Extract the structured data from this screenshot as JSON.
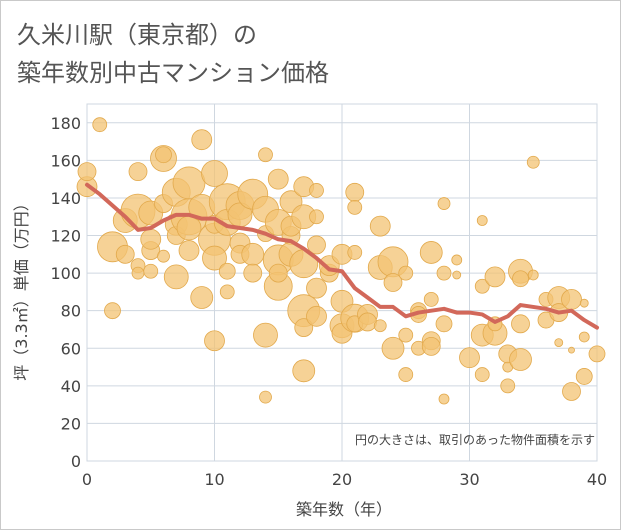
{
  "page": {
    "title_line1": "久米川駅（東京都）の",
    "title_line2": "築年数別中古マンション価格"
  },
  "colors": {
    "bubble_fill": "#f3c373",
    "bubble_stroke": "#e2a94c",
    "line": "#d2685a",
    "grid": "#cfd7e0",
    "axis_text": "#444444"
  },
  "chart_data": {
    "type": "scatter",
    "xlabel": "築年数（年）",
    "ylabel": "坪（3.3㎡）単価（万円）",
    "xlim": [
      0,
      40
    ],
    "ylim": [
      0,
      190
    ],
    "x_ticks": [
      "0",
      "10",
      "20",
      "30",
      "40"
    ],
    "y_ticks": [
      "0",
      "20",
      "40",
      "60",
      "80",
      "100",
      "120",
      "140",
      "160",
      "180"
    ],
    "x_tick_values": [
      0,
      10,
      20,
      30,
      40
    ],
    "y_tick_values": [
      0,
      20,
      40,
      60,
      80,
      100,
      120,
      140,
      160,
      180
    ],
    "grid": true,
    "note": "円の大きさは、取引のあった物件面積を示す",
    "trend_line": {
      "x": [
        0,
        1,
        2,
        3,
        4,
        5,
        6,
        7,
        8,
        9,
        10,
        11,
        12,
        13,
        14,
        15,
        16,
        17,
        18,
        19,
        20,
        21,
        22,
        23,
        24,
        25,
        26,
        27,
        28,
        29,
        30,
        31,
        32,
        33,
        34,
        35,
        36,
        37,
        38,
        39,
        40
      ],
      "y": [
        147,
        142,
        136,
        130,
        123,
        124,
        128,
        131,
        131,
        129,
        129,
        125,
        124,
        123,
        121,
        118,
        117,
        113,
        108,
        102,
        101,
        92,
        87,
        82,
        82,
        77,
        79,
        80,
        81,
        79,
        79,
        78,
        74,
        77,
        83,
        82,
        81,
        79,
        80,
        75,
        71
      ]
    },
    "bubbles": [
      [
        0,
        146,
        10
      ],
      [
        0,
        154,
        9
      ],
      [
        1,
        179,
        7
      ],
      [
        2,
        114,
        15
      ],
      [
        2,
        80,
        8
      ],
      [
        3,
        110,
        9
      ],
      [
        3,
        128,
        12
      ],
      [
        4,
        133,
        17
      ],
      [
        4,
        154,
        9
      ],
      [
        4,
        104,
        7
      ],
      [
        4,
        100,
        6
      ],
      [
        5,
        132,
        12
      ],
      [
        5,
        112,
        9
      ],
      [
        5,
        101,
        7
      ],
      [
        5,
        118,
        10
      ],
      [
        6,
        161,
        13
      ],
      [
        6,
        163,
        8
      ],
      [
        6,
        137,
        9
      ],
      [
        6,
        109,
        6
      ],
      [
        7,
        143,
        14
      ],
      [
        7,
        126,
        11
      ],
      [
        7,
        98,
        12
      ],
      [
        7,
        120,
        9
      ],
      [
        8,
        148,
        16
      ],
      [
        8,
        130,
        18
      ],
      [
        8,
        124,
        12
      ],
      [
        8,
        112,
        10
      ],
      [
        9,
        171,
        10
      ],
      [
        9,
        87,
        11
      ],
      [
        9,
        135,
        13
      ],
      [
        10,
        153,
        13
      ],
      [
        10,
        118,
        16
      ],
      [
        10,
        108,
        12
      ],
      [
        10,
        64,
        10
      ],
      [
        10,
        126,
        9
      ],
      [
        11,
        138,
        18
      ],
      [
        11,
        127,
        13
      ],
      [
        11,
        101,
        8
      ],
      [
        11,
        90,
        7
      ],
      [
        12,
        136,
        14
      ],
      [
        12,
        131,
        12
      ],
      [
        12,
        116,
        10
      ],
      [
        12,
        110,
        9
      ],
      [
        13,
        142,
        15
      ],
      [
        13,
        110,
        11
      ],
      [
        13,
        100,
        9
      ],
      [
        14,
        134,
        13
      ],
      [
        14,
        163,
        7
      ],
      [
        14,
        67,
        12
      ],
      [
        14,
        34,
        6
      ],
      [
        14,
        121,
        8
      ],
      [
        15,
        150,
        10
      ],
      [
        15,
        127,
        13
      ],
      [
        15,
        107,
        15
      ],
      [
        15,
        93,
        14
      ],
      [
        15,
        100,
        9
      ],
      [
        16,
        138,
        11
      ],
      [
        16,
        120,
        9
      ],
      [
        16,
        110,
        12
      ],
      [
        16,
        125,
        10
      ],
      [
        17,
        146,
        10
      ],
      [
        17,
        105,
        14
      ],
      [
        17,
        80,
        16
      ],
      [
        17,
        71,
        9
      ],
      [
        17,
        48,
        11
      ],
      [
        17,
        130,
        12
      ],
      [
        18,
        144,
        7
      ],
      [
        18,
        130,
        7
      ],
      [
        18,
        115,
        9
      ],
      [
        18,
        92,
        10
      ],
      [
        18,
        77,
        10
      ],
      [
        19,
        100,
        9
      ],
      [
        19,
        104,
        10
      ],
      [
        20,
        110,
        10
      ],
      [
        20,
        85,
        11
      ],
      [
        20,
        72,
        12
      ],
      [
        20,
        68,
        10
      ],
      [
        21,
        143,
        9
      ],
      [
        21,
        135,
        7
      ],
      [
        21,
        111,
        7
      ],
      [
        21,
        76,
        14
      ],
      [
        21,
        73,
        8
      ],
      [
        22,
        78,
        10
      ],
      [
        22,
        74,
        9
      ],
      [
        23,
        125,
        10
      ],
      [
        23,
        103,
        12
      ],
      [
        23,
        72,
        6
      ],
      [
        24,
        106,
        15
      ],
      [
        24,
        95,
        9
      ],
      [
        24,
        60,
        11
      ],
      [
        25,
        100,
        7
      ],
      [
        25,
        67,
        7
      ],
      [
        25,
        46,
        7
      ],
      [
        26,
        80,
        8
      ],
      [
        26,
        78,
        8
      ],
      [
        26,
        60,
        7
      ],
      [
        27,
        111,
        11
      ],
      [
        27,
        86,
        7
      ],
      [
        27,
        64,
        9
      ],
      [
        27,
        61,
        9
      ],
      [
        28,
        137,
        6
      ],
      [
        28,
        100,
        7
      ],
      [
        28,
        73,
        8
      ],
      [
        28,
        33,
        5
      ],
      [
        29,
        107,
        5
      ],
      [
        29,
        99,
        4
      ],
      [
        30,
        55,
        10
      ],
      [
        31,
        128,
        5
      ],
      [
        31,
        93,
        7
      ],
      [
        31,
        67,
        11
      ],
      [
        31,
        46,
        7
      ],
      [
        32,
        98,
        10
      ],
      [
        32,
        68,
        12
      ],
      [
        32,
        73,
        7
      ],
      [
        33,
        50,
        5
      ],
      [
        33,
        40,
        7
      ],
      [
        33,
        57,
        9
      ],
      [
        34,
        101,
        12
      ],
      [
        34,
        97,
        8
      ],
      [
        34,
        54,
        11
      ],
      [
        34,
        73,
        9
      ],
      [
        35,
        159,
        6
      ],
      [
        35,
        99,
        5
      ],
      [
        36,
        86,
        7
      ],
      [
        36,
        75,
        8
      ],
      [
        37,
        87,
        11
      ],
      [
        37,
        79,
        9
      ],
      [
        37,
        63,
        4
      ],
      [
        38,
        86,
        10
      ],
      [
        38,
        37,
        9
      ],
      [
        38,
        59,
        3
      ],
      [
        39,
        84,
        4
      ],
      [
        39,
        45,
        8
      ],
      [
        39,
        66,
        5
      ],
      [
        40,
        57,
        8
      ]
    ]
  }
}
